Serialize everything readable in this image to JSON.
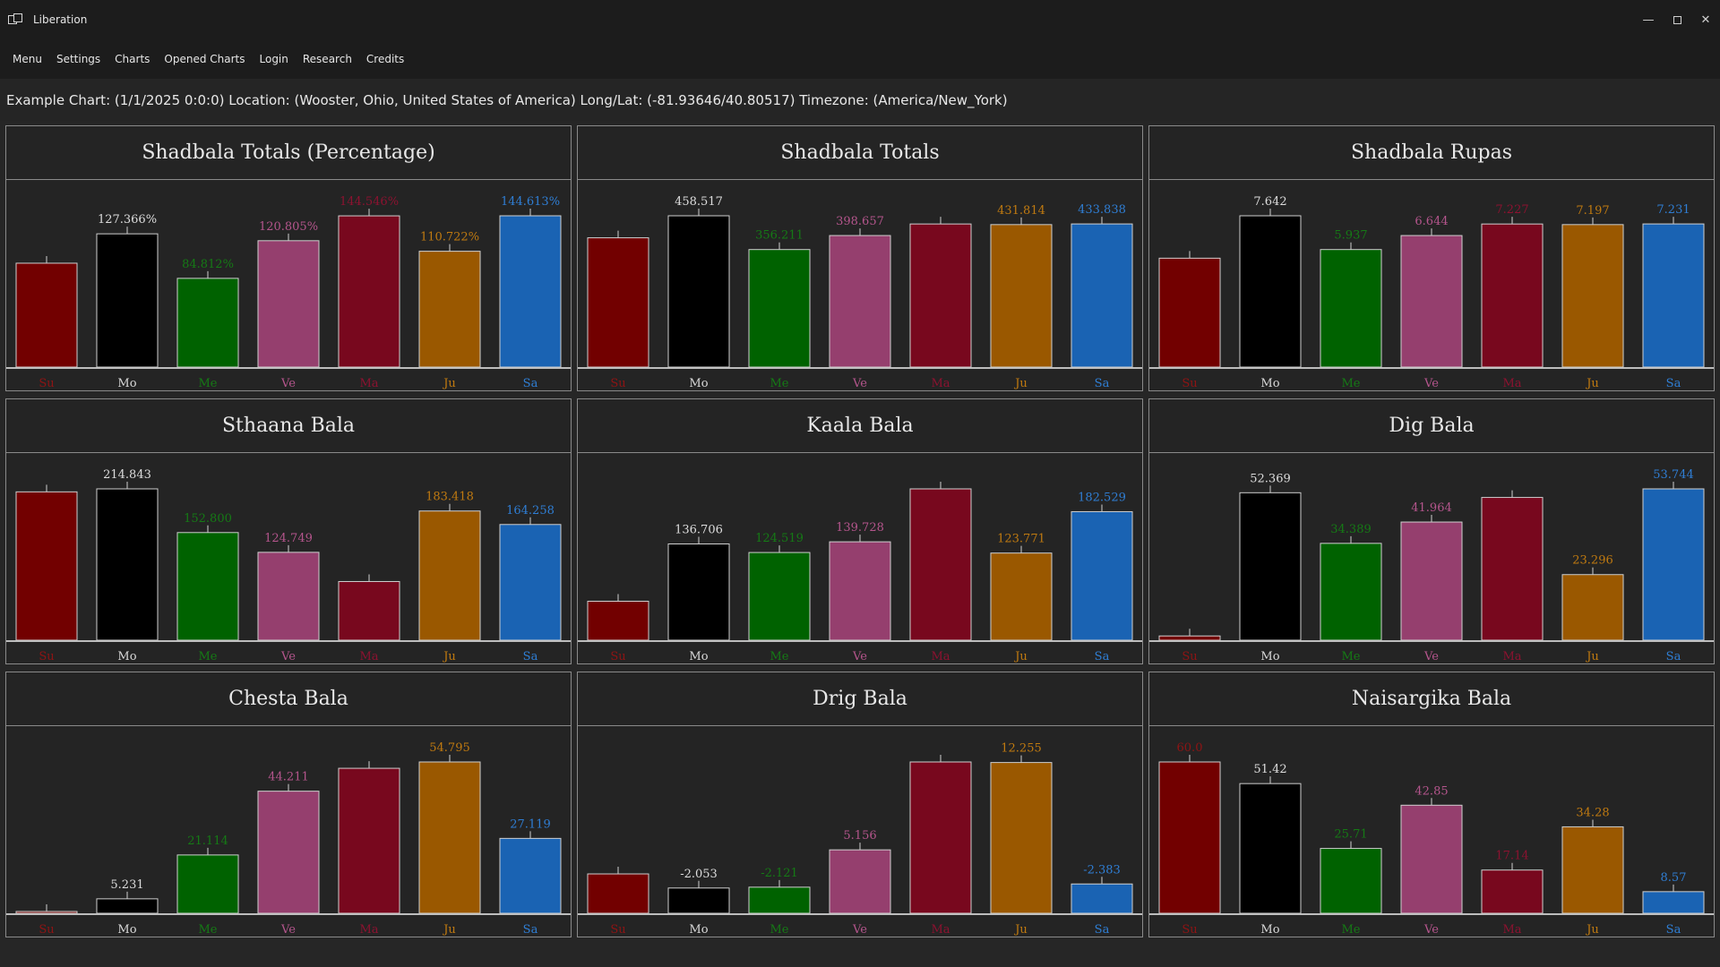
{
  "window": {
    "title": "Liberation",
    "controls": {
      "minimize": "—",
      "close": "✕"
    }
  },
  "menu": [
    "Menu",
    "Settings",
    "Charts",
    "Opened Charts",
    "Login",
    "Research",
    "Credits"
  ],
  "info": "Example Chart: (1/1/2025 0:0:0) Location: (Wooster, Ohio, United States of America) Long/Lat: (-81.93646/40.80517) Timezone: (America/New_York)",
  "colors": {
    "Su": "#720000",
    "Mo": "#000000",
    "Me": "#006200",
    "Ve": "#953f6e",
    "Ma": "#78081e",
    "Ju": "#9a5800",
    "Sa": "#1a63b3"
  },
  "label_colors": {
    "Su": "#8e1414",
    "Mo": "#111111",
    "Me": "#157a15",
    "Ve": "#b4558c",
    "Ma": "#8c1230",
    "Ju": "#c07a10",
    "Sa": "#2f7ed4"
  },
  "chart_data": [
    {
      "type": "bar",
      "title": "Shadbala Totals (Percentage)",
      "categories": [
        "Su",
        "Mo",
        "Me",
        "Ve",
        "Ma",
        "Ju",
        "Sa"
      ],
      "values": [
        99.3,
        127.366,
        84.812,
        120.805,
        144.546,
        110.722,
        144.613
      ],
      "labels": [
        "",
        "127.366%",
        "84.812%",
        "120.805%",
        "144.546%",
        "110.722%",
        "144.613%"
      ]
    },
    {
      "type": "bar",
      "title": "Shadbala Totals",
      "categories": [
        "Su",
        "Mo",
        "Me",
        "Ve",
        "Ma",
        "Ju",
        "Sa"
      ],
      "values": [
        391.8,
        458.517,
        356.211,
        398.657,
        433.7,
        431.814,
        433.838
      ],
      "labels": [
        "",
        "458.517",
        "356.211",
        "398.657",
        "",
        "431.814",
        "433.838"
      ]
    },
    {
      "type": "bar",
      "title": "Shadbala Rupas",
      "categories": [
        "Su",
        "Mo",
        "Me",
        "Ve",
        "Ma",
        "Ju",
        "Sa"
      ],
      "values": [
        5.5,
        7.642,
        5.937,
        6.644,
        7.227,
        7.197,
        7.231
      ],
      "labels": [
        "",
        "7.642",
        "5.937",
        "6.644",
        "7.227",
        "7.197",
        "7.231"
      ]
    },
    {
      "type": "bar",
      "title": "Sthaana Bala",
      "categories": [
        "Su",
        "Mo",
        "Me",
        "Ve",
        "Ma",
        "Ju",
        "Sa"
      ],
      "values": [
        210.6,
        214.843,
        152.8,
        124.749,
        83.3,
        183.418,
        164.258
      ],
      "labels": [
        "",
        "214.843",
        "152.800",
        "124.749",
        "",
        "183.418",
        "164.258"
      ]
    },
    {
      "type": "bar",
      "title": "Kaala Bala",
      "categories": [
        "Su",
        "Mo",
        "Me",
        "Ve",
        "Ma",
        "Ju",
        "Sa"
      ],
      "values": [
        55.3,
        136.706,
        124.519,
        139.728,
        214.9,
        123.771,
        182.529
      ],
      "labels": [
        "",
        "136.706",
        "124.519",
        "139.728",
        "",
        "123.771",
        "182.529"
      ]
    },
    {
      "type": "bar",
      "title": "Dig Bala",
      "categories": [
        "Su",
        "Mo",
        "Me",
        "Ve",
        "Ma",
        "Ju",
        "Sa"
      ],
      "values": [
        1.5,
        52.369,
        34.389,
        41.964,
        50.7,
        23.296,
        53.744
      ],
      "labels": [
        "",
        "52.369",
        "34.389",
        "41.964",
        "",
        "23.296",
        "53.744"
      ]
    },
    {
      "type": "bar",
      "title": "Chesta Bala",
      "categories": [
        "Su",
        "Mo",
        "Me",
        "Ve",
        "Ma",
        "Ju",
        "Sa"
      ],
      "values": [
        0.3,
        5.231,
        21.114,
        44.211,
        52.5,
        54.795,
        27.119
      ],
      "labels": [
        "",
        "5.231",
        "21.114",
        "44.211",
        "",
        "54.795",
        "27.119"
      ]
    },
    {
      "type": "bar",
      "title": "Drig Bala",
      "categories": [
        "Su",
        "Mo",
        "Me",
        "Ve",
        "Ma",
        "Ju",
        "Sa"
      ],
      "values": [
        -3.2,
        -2.053,
        -2.121,
        5.156,
        12.3,
        12.255,
        -2.383
      ],
      "labels": [
        "",
        "-2.053",
        "-2.121",
        "5.156",
        "",
        "12.255",
        "-2.383"
      ]
    },
    {
      "type": "bar",
      "title": "Naisargika Bala",
      "categories": [
        "Su",
        "Mo",
        "Me",
        "Ve",
        "Ma",
        "Ju",
        "Sa"
      ],
      "values": [
        60.0,
        51.42,
        25.71,
        42.85,
        17.14,
        34.28,
        8.57
      ],
      "labels": [
        "60.0",
        "51.42",
        "25.71",
        "42.85",
        "17.14",
        "34.28",
        "8.57"
      ]
    }
  ]
}
